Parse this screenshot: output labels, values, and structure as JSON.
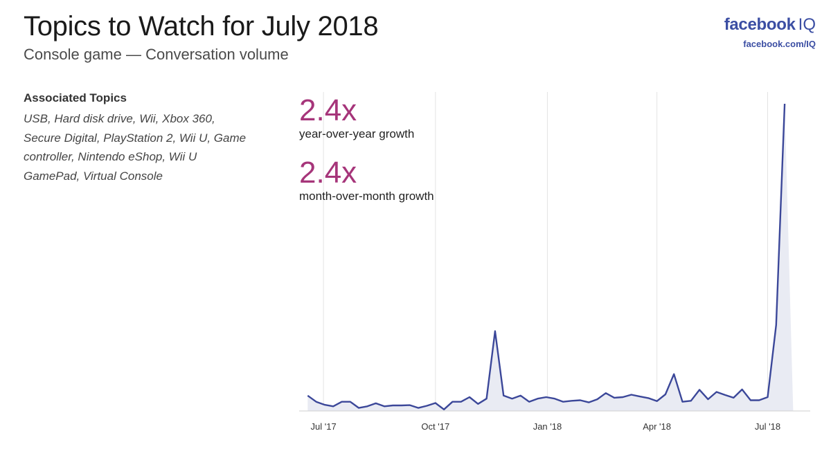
{
  "header": {
    "title": "Topics to Watch for July 2018",
    "subtitle": "Console game — Conversation volume"
  },
  "brand": {
    "logo_main": "facebook",
    "logo_suffix": "IQ",
    "url": "facebook.com/IQ",
    "color": "#3b4ea3"
  },
  "associated": {
    "title": "Associated Topics",
    "topics": "USB, Hard disk drive, Wii, Xbox 360, Secure Digital, PlayStation 2, Wii U, Game controller, Nintendo eShop, Wii U GamePad, Virtual Console"
  },
  "stats": [
    {
      "value": "2.4x",
      "label": "year-over-year growth"
    },
    {
      "value": "2.4x",
      "label": "month-over-month growth"
    }
  ],
  "chart_data": {
    "type": "area",
    "title": "",
    "xlabel": "",
    "ylabel": "",
    "x_start": "2017-06-18",
    "x_step_days": 7,
    "x_range": [
      "2017-06-11",
      "2018-08-05"
    ],
    "ylim": [
      0,
      100
    ],
    "grid": "vertical",
    "line_color": "#3b4799",
    "fill_color": "#e9ebf3",
    "tick_labels": [
      {
        "label": "Jul '17",
        "date": "2017-07-01"
      },
      {
        "label": "Oct '17",
        "date": "2017-10-01"
      },
      {
        "label": "Jan '18",
        "date": "2018-01-01"
      },
      {
        "label": "Apr '18",
        "date": "2018-04-01"
      },
      {
        "label": "Jul '18",
        "date": "2018-07-01"
      }
    ],
    "values": [
      5,
      3,
      2,
      1.5,
      3,
      3,
      1,
      1.5,
      2.5,
      1.5,
      1.8,
      1.8,
      1.9,
      1,
      1.7,
      2.6,
      0.5,
      3,
      3,
      4.5,
      2.3,
      4,
      26,
      5,
      4,
      5,
      3,
      4,
      4.5,
      4,
      3,
      3.3,
      3.5,
      2.8,
      3.8,
      5.8,
      4.3,
      4.5,
      5.3,
      4.7,
      4.2,
      3.2,
      5.4,
      12,
      3,
      3.3,
      6.9,
      3.8,
      6.2,
      5.2,
      4.3,
      7,
      3.5,
      3.5,
      4.5,
      28,
      100,
      0
    ]
  }
}
